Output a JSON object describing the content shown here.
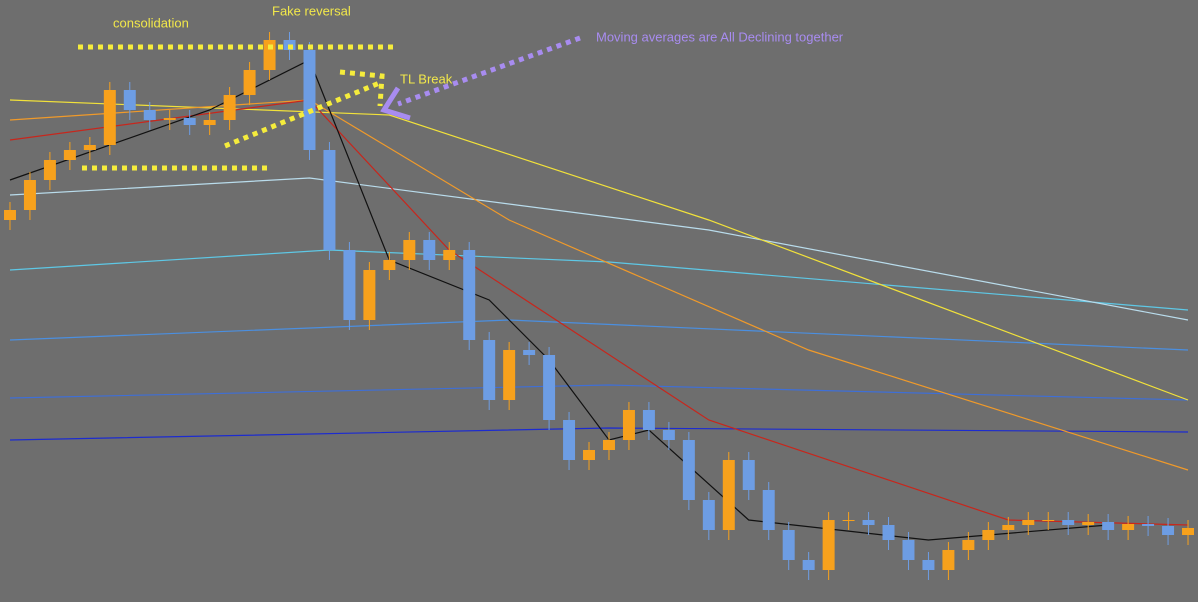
{
  "chart_data": {
    "type": "candlestick",
    "annotations": [
      "consolidation",
      "Fake reversal",
      "TL Break",
      "Moving averages are All Declining together"
    ],
    "ylim": [
      0,
      602
    ],
    "up_color": "#f7a11c",
    "down_color": "#6d9de4",
    "open": [
      382,
      392,
      422,
      442,
      452,
      457,
      512,
      492,
      482,
      484,
      477,
      482,
      507,
      532,
      562,
      552,
      452,
      352,
      282,
      332,
      342,
      362,
      342,
      352,
      262,
      202,
      252,
      247,
      182,
      142,
      152,
      162,
      192,
      172,
      162,
      102,
      72,
      142,
      112,
      72,
      42,
      32,
      82,
      82,
      77,
      62,
      42,
      32,
      52,
      62,
      72,
      77,
      82,
      82,
      77,
      80,
      72,
      78,
      76,
      67
    ],
    "close": [
      392,
      422,
      442,
      452,
      457,
      512,
      492,
      482,
      484,
      477,
      482,
      507,
      532,
      562,
      552,
      452,
      352,
      282,
      332,
      342,
      362,
      342,
      352,
      262,
      202,
      252,
      247,
      182,
      142,
      152,
      162,
      192,
      172,
      162,
      102,
      72,
      142,
      112,
      72,
      42,
      32,
      82,
      82,
      77,
      62,
      42,
      32,
      52,
      62,
      72,
      77,
      82,
      82,
      77,
      80,
      72,
      78,
      76,
      67,
      74
    ],
    "high": [
      400,
      430,
      450,
      460,
      465,
      520,
      520,
      500,
      492,
      492,
      490,
      515,
      540,
      570,
      570,
      560,
      460,
      360,
      340,
      350,
      370,
      370,
      360,
      360,
      270,
      260,
      260,
      255,
      190,
      160,
      170,
      200,
      200,
      180,
      170,
      110,
      150,
      150,
      120,
      80,
      50,
      90,
      90,
      90,
      85,
      70,
      50,
      60,
      70,
      80,
      85,
      90,
      90,
      90,
      88,
      88,
      86,
      86,
      84,
      82
    ],
    "low": [
      372,
      382,
      412,
      432,
      442,
      447,
      482,
      472,
      472,
      467,
      467,
      472,
      497,
      522,
      542,
      442,
      342,
      272,
      272,
      322,
      332,
      332,
      332,
      252,
      192,
      192,
      237,
      172,
      132,
      132,
      142,
      152,
      162,
      152,
      92,
      62,
      62,
      102,
      62,
      32,
      22,
      22,
      72,
      67,
      52,
      32,
      22,
      22,
      42,
      52,
      62,
      67,
      72,
      67,
      67,
      62,
      62,
      66,
      57,
      57
    ],
    "lines": [
      {
        "color": "#1c2bd0",
        "x": [
          0,
          30,
          59
        ],
        "values": [
          162,
          174,
          170
        ]
      },
      {
        "color": "#3f6fd6",
        "x": [
          0,
          30,
          59
        ],
        "values": [
          204,
          217,
          202
        ]
      },
      {
        "color": "#4b8fe0",
        "x": [
          0,
          25,
          59
        ],
        "values": [
          262,
          282,
          252
        ]
      },
      {
        "color": "#5ec8e6",
        "x": [
          0,
          16,
          30,
          59
        ],
        "values": [
          332,
          352,
          340,
          292
        ]
      },
      {
        "color": "#b9dcec",
        "x": [
          0,
          15,
          35,
          59
        ],
        "values": [
          407,
          424,
          372,
          282
        ]
      },
      {
        "color": "#f2e23a",
        "x": [
          0,
          19,
          35,
          59
        ],
        "values": [
          502,
          487,
          382,
          202
        ]
      },
      {
        "color": "#f09a2a",
        "x": [
          0,
          15,
          25,
          40,
          59
        ],
        "values": [
          482,
          502,
          382,
          252,
          132
        ]
      },
      {
        "color": "#c8261c",
        "x": [
          0,
          15,
          22,
          35,
          50,
          59
        ],
        "values": [
          462,
          502,
          352,
          182,
          82,
          77
        ]
      },
      {
        "color": "#111111",
        "x": [
          0,
          10,
          15,
          19,
          24,
          27,
          30,
          32,
          37,
          46,
          55
        ],
        "values": [
          422,
          492,
          542,
          342,
          302,
          242,
          162,
          172,
          82,
          62,
          77
        ]
      }
    ]
  }
}
